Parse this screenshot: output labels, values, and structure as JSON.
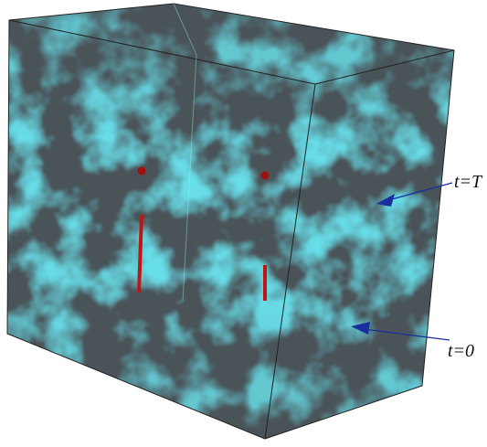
{
  "labels": {
    "top": "t=T",
    "bottom": "t=0"
  }
}
